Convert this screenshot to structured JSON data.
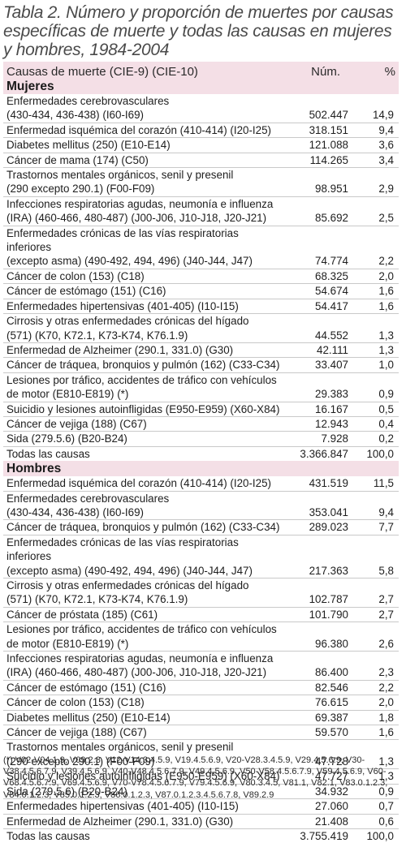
{
  "caption": "Tabla 2. Número y proporción de muertes por causas específicas de muerte y todas las causas en mujeres y hombres, 1984-2004",
  "table": {
    "header": {
      "cause": "Causas de muerte (CIE-9) (CIE-10)",
      "num": "Núm.",
      "pct": "%"
    },
    "sections": [
      {
        "title": "Mujeres",
        "rows": [
          {
            "lines": [
              "Enfermedades cerebrovasculares",
              "(430-434, 436-438) (I60-I69)"
            ],
            "num": "502.447",
            "pct": "14,9"
          },
          {
            "lines": [
              "Enfermedad isquémica del corazón (410-414) (I20-I25)"
            ],
            "num": "318.151",
            "pct": "9,4"
          },
          {
            "lines": [
              "Diabetes mellitus (250) (E10-E14)"
            ],
            "num": "121.088",
            "pct": "3,6"
          },
          {
            "lines": [
              "Cáncer de mama (174) (C50)"
            ],
            "num": "114.265",
            "pct": "3,4"
          },
          {
            "lines": [
              "Trastornos mentales orgánicos, senil y presenil",
              "(290 excepto 290.1) (F00-F09)"
            ],
            "num": "98.951",
            "pct": "2,9"
          },
          {
            "lines": [
              "Infecciones respiratorias agudas, neumonía e influenza",
              "(IRA) (460-466, 480-487) (J00-J06, J10-J18, J20-J21)"
            ],
            "num": "85.692",
            "pct": "2,5"
          },
          {
            "lines": [
              "Enfermedades crónicas de las vías respiratorias inferiores",
              "(excepto asma) (490-492, 494, 496) (J40-J44, J47)"
            ],
            "num": "74.774",
            "pct": "2,2"
          },
          {
            "lines": [
              "Cáncer de colon (153) (C18)"
            ],
            "num": "68.325",
            "pct": "2,0"
          },
          {
            "lines": [
              "Cáncer de estómago (151) (C16)"
            ],
            "num": "54.674",
            "pct": "1,6"
          },
          {
            "lines": [
              "Enfermedades hipertensivas (401-405) (I10-I15)"
            ],
            "num": "54.417",
            "pct": "1,6"
          },
          {
            "lines": [
              "Cirrosis y otras enfermedades crónicas del hígado",
              "(571) (K70, K72.1, K73-K74, K76.1.9)"
            ],
            "num": "44.552",
            "pct": "1,3"
          },
          {
            "lines": [
              "Enfermedad de Alzheimer (290.1, 331.0) (G30)"
            ],
            "num": "42.111",
            "pct": "1,3"
          },
          {
            "lines": [
              "Cáncer de tráquea, bronquios y pulmón (162) (C33-C34)"
            ],
            "num": "33.407",
            "pct": "1,0"
          },
          {
            "lines": [
              "Lesiones por tráfico, accidentes de tráfico con vehículos",
              "de motor (E810-E819) (*)"
            ],
            "num": "29.383",
            "pct": "0,9"
          },
          {
            "lines": [
              "Suicidio y lesiones autoinfligidas (E950-E959) (X60-X84)"
            ],
            "num": "16.167",
            "pct": "0,5"
          },
          {
            "lines": [
              "Cáncer de vejiga (188) (C67)"
            ],
            "num": "12.943",
            "pct": "0,4"
          },
          {
            "lines": [
              "Sida (279.5.6) (B20-B24)"
            ],
            "num": "7.928",
            "pct": "0,2"
          },
          {
            "lines": [
              "Todas las causas"
            ],
            "num": "3.366.847",
            "pct": "100,0",
            "total": true
          }
        ]
      },
      {
        "title": "Hombres",
        "rows": [
          {
            "lines": [
              "Enfermedad isquémica del corazón (410-414) (I20-I25)"
            ],
            "num": "431.519",
            "pct": "11,5"
          },
          {
            "lines": [
              "Enfermedades cerebrovasculares",
              "(430-434, 436-438) (I60-I69)"
            ],
            "num": "353.041",
            "pct": "9,4"
          },
          {
            "lines": [
              "Cáncer de tráquea, bronquios y pulmón (162) (C33-C34)"
            ],
            "num": "289.023",
            "pct": "7,7"
          },
          {
            "lines": [
              "Enfermedades crónicas de las vías respiratorias inferiores",
              "(excepto asma) (490-492, 494, 496) (J40-J44, J47)"
            ],
            "num": "217.363",
            "pct": "5,8"
          },
          {
            "lines": [
              "Cirrosis y otras enfermedades crónicas del hígado",
              "(571) (K70, K72.1, K73-K74, K76.1.9)"
            ],
            "num": "102.787",
            "pct": "2,7"
          },
          {
            "lines": [
              "Cáncer de próstata (185) (C61)"
            ],
            "num": "101.790",
            "pct": "2,7"
          },
          {
            "lines": [
              "Lesiones por tráfico, accidentes de tráfico con vehículos",
              "de motor (E810-E819) (*)"
            ],
            "num": "96.380",
            "pct": "2,6"
          },
          {
            "lines": [
              "Infecciones respiratorias agudas, neumonía e influenza",
              "(IRA) (460-466, 480-487) (J00-J06, J10-J18, J20-J21)"
            ],
            "num": "86.400",
            "pct": "2,3"
          },
          {
            "lines": [
              "Cáncer de estómago (151) (C16)"
            ],
            "num": "82.546",
            "pct": "2,2"
          },
          {
            "lines": [
              "Cáncer de colon (153) (C18)"
            ],
            "num": "76.615",
            "pct": "2,0"
          },
          {
            "lines": [
              "Diabetes mellitus (250) (E10-E14)"
            ],
            "num": "69.387",
            "pct": "1,8"
          },
          {
            "lines": [
              "Cáncer de vejiga (188) (C67)"
            ],
            "num": "59.570",
            "pct": "1,6"
          },
          {
            "lines": [
              "Trastornos mentales orgánicos, senil y presenil",
              "(290 excepto 290.1) (F00-F09)"
            ],
            "num": "47.728",
            "pct": "1,3"
          },
          {
            "lines": [
              "Suicidio y lesiones autoinfligidas (E950-E959) (X60-X84)"
            ],
            "num": "47.727",
            "pct": "1,3"
          },
          {
            "lines": [
              "Sida (279.5.6) (B20-B24)"
            ],
            "num": "34.932",
            "pct": "0,9"
          },
          {
            "lines": [
              "Enfermedades hipertensivas (401-405) (I10-I15)"
            ],
            "num": "27.060",
            "pct": "0,7"
          },
          {
            "lines": [
              "Enfermedad de Alzheimer (290.1, 331.0) (G30)"
            ],
            "num": "21.408",
            "pct": "0,6"
          },
          {
            "lines": [
              "Todas las causas"
            ],
            "num": "3.755.419",
            "pct": "100,0",
            "total": true
          }
        ]
      }
    ]
  },
  "footnote": "(*) V02-V04.1.9, V09.2.3, V12-V14.3.4.5.9, V19.4.5.6.9, V20-V28.3.4.5.9, V29.4.5.6.9, V30-V38.4.5.6.7.9, V39.4.5.6.9, V40-V48.4.5.6.7.9, V49.4.5.6.9, V50-V58.4.5.6.7.9, V59.4.5.6.9, V60-V68.4.5.6.7.9, V69.4.5.6.9, V70-V78.4.5.6.7.9, V79.4.5.6.9, V80.3.4.5, V81.1, V82.1, V83.0.1.2.3, V84.0.1.2.3, V85.0.1.2.3, V86.0.1.2.3, V87.0.1.2.3.4.5.6.7.8, V89.2.9"
}
